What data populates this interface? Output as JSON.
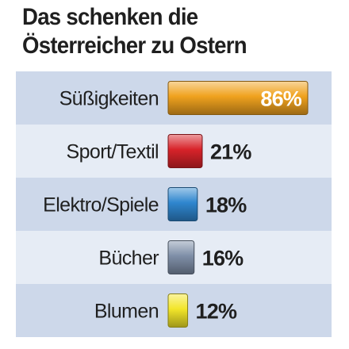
{
  "title_lines": [
    "Das schenken die",
    "Österreicher zu Ostern"
  ],
  "chart_data": {
    "type": "bar",
    "orientation": "horizontal",
    "title": "Das schenken die Österreicher zu Ostern",
    "categories": [
      "Süßigkeiten",
      "Sport/Textil",
      "Elektro/Spiele",
      "Bücher",
      "Blumen"
    ],
    "values": [
      86,
      21,
      18,
      16,
      12
    ],
    "value_labels": [
      "86%",
      "21%",
      "18%",
      "16%",
      "12%"
    ],
    "unit": "%",
    "xlim": [
      0,
      86
    ],
    "grid": false,
    "legend": "none",
    "colors": [
      "#f0a21e",
      "#d8232a",
      "#2f86cf",
      "#7f8fa8",
      "#f3e62a"
    ],
    "value_label_inside": [
      true,
      false,
      false,
      false,
      false
    ]
  },
  "colors": {
    "row_odd": "#cdd8ea",
    "row_even": "#e6ecf5",
    "text": "#1f1f1f",
    "label_inside": "#ffffff"
  }
}
